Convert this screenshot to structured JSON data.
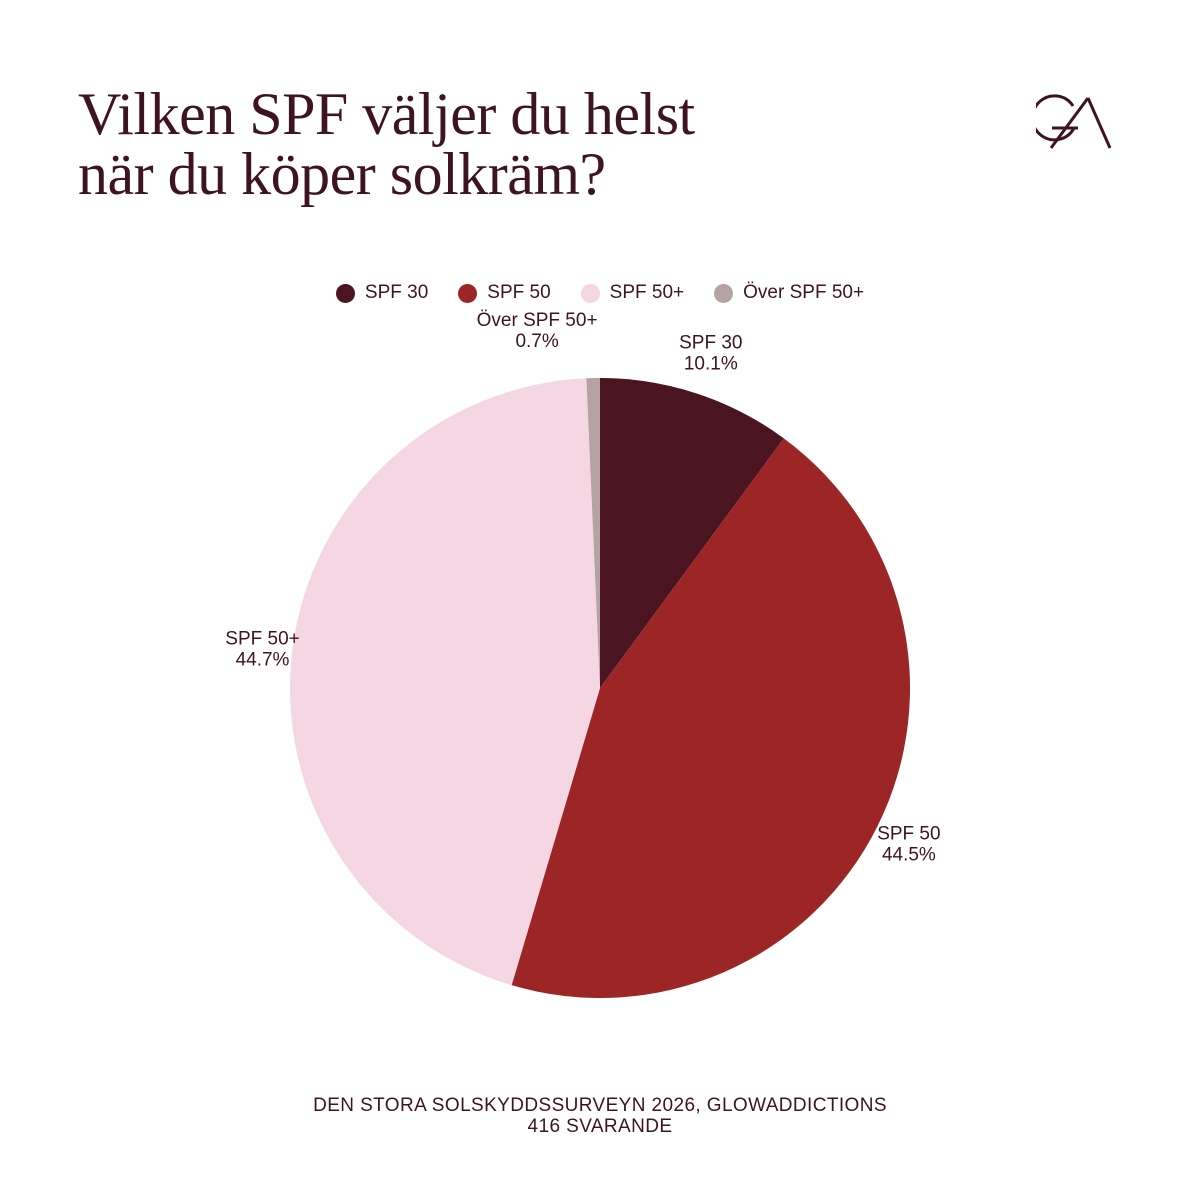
{
  "title": {
    "line1": "Vilken SPF väljer du helst",
    "line2": "när du köper solkräm?"
  },
  "logo": {
    "icon": "ga-monogram-icon",
    "color": "#3d1420"
  },
  "chart_data": {
    "type": "pie",
    "title": "Vilken SPF väljer du helst när du köper solkräm?",
    "legend_placement": "top-center",
    "start_angle_deg": 0,
    "direction": "clockwise",
    "slices": [
      {
        "label": "SPF 30",
        "value": 10.1,
        "value_label": "10.1%",
        "color": "#4a1520"
      },
      {
        "label": "SPF 50",
        "value": 44.5,
        "value_label": "44.5%",
        "color": "#9c2626"
      },
      {
        "label": "SPF 50+",
        "value": 44.7,
        "value_label": "44.7%",
        "color": "#f5d6e3"
      },
      {
        "label": "Över SPF 50+",
        "value": 0.7,
        "value_label": "0.7%",
        "color": "#b5a2a2"
      }
    ]
  },
  "footer": {
    "source": "DEN STORA SOLSKYDDSSURVEYN 2026, GLOWADDICTIONS",
    "respondents": "416 SVARANDE"
  }
}
